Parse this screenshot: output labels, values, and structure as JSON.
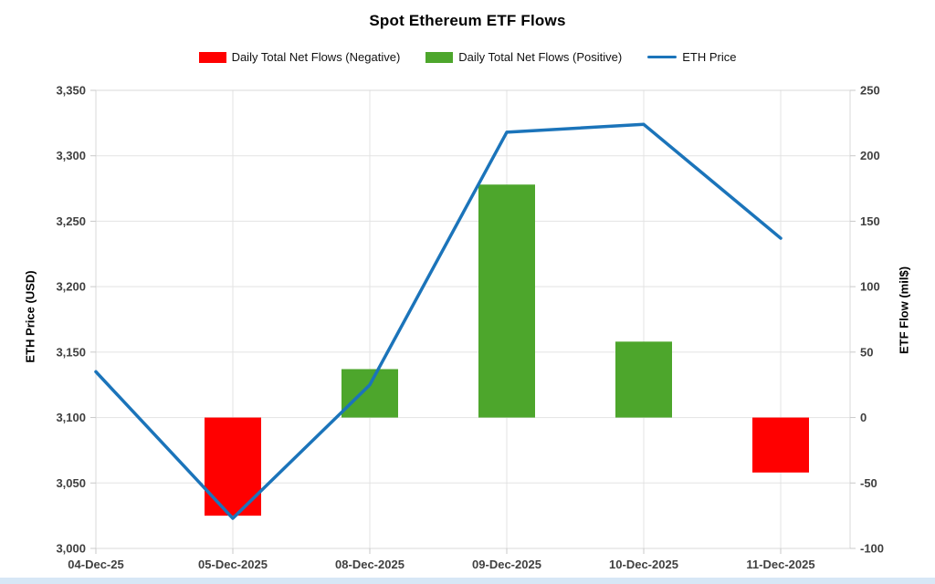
{
  "chart_data": {
    "type": "combo",
    "title": "Spot Ethereum ETF Flows",
    "categories": [
      "04-Dec-25",
      "05-Dec-2025",
      "08-Dec-2025",
      "09-Dec-2025",
      "10-Dec-2025",
      "11-Dec-2025"
    ],
    "series": [
      {
        "name": "Daily Total Net Flows (Negative)",
        "type": "bar",
        "axis": "right",
        "color": "#FF0000",
        "values": [
          null,
          -75,
          null,
          null,
          null,
          -42
        ]
      },
      {
        "name": "Daily Total Net Flows (Positive)",
        "type": "bar",
        "axis": "right",
        "color": "#4DA62C",
        "values": [
          null,
          null,
          37,
          178,
          58,
          null
        ]
      },
      {
        "name": "ETH Price",
        "type": "line",
        "axis": "left",
        "color": "#1B74BA",
        "values": [
          3135,
          3023,
          3125,
          3318,
          3324,
          3237
        ]
      }
    ],
    "axes": {
      "left": {
        "label": "ETH Price (USD)",
        "min": 3000,
        "max": 3350,
        "ticks": [
          3350,
          3300,
          3250,
          3200,
          3150,
          3100,
          3050,
          3000
        ],
        "tick_labels": [
          "3,350",
          "3,300",
          "3,250",
          "3,200",
          "3,150",
          "3,100",
          "3,050",
          "3,000"
        ]
      },
      "right": {
        "label": "ETF Flow (mil$)",
        "min": -100,
        "max": 250,
        "ticks": [
          250,
          200,
          150,
          100,
          50,
          0,
          -50,
          -100
        ],
        "tick_labels": [
          "250",
          "200",
          "150",
          "100",
          "50",
          "0",
          "-50",
          "-100"
        ]
      }
    },
    "grid": true,
    "legend_position": "top",
    "colors": {
      "grid": "#E3E3E3",
      "plot_border": "#D9D9D9",
      "tick_mark": "#C9C9C9",
      "axis_text": "#404040",
      "bottom_strip": "#D7E7F6"
    }
  }
}
